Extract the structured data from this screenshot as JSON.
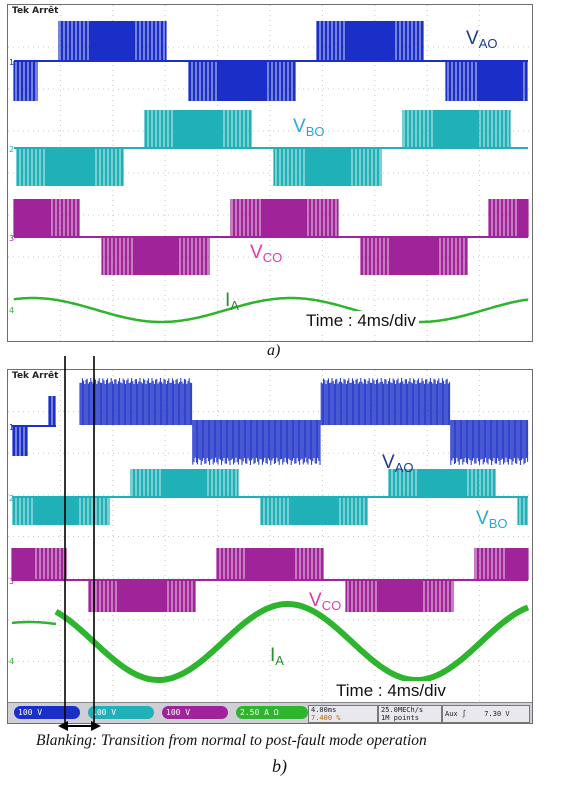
{
  "panel_a": {
    "scope_header": "Tek Arrêt",
    "labels": {
      "vao_main": "V",
      "vao_sub": "AO",
      "vbo_main": "V",
      "vbo_sub": "BO",
      "vco_main": "V",
      "vco_sub": "CO",
      "ia_main": "I",
      "ia_sub": "A"
    },
    "time_label": "Time : 4ms/div",
    "caption": "a)"
  },
  "panel_b": {
    "scope_header": "Tek Arrêt",
    "labels": {
      "vao_main": "V",
      "vao_sub": "AO",
      "vbo_main": "V",
      "vbo_sub": "BO",
      "vco_main": "V",
      "vco_sub": "CO",
      "ia_main": "I",
      "ia_sub": "A"
    },
    "time_label": "Time : 4ms/div",
    "status": {
      "ch1": "100 V",
      "ch2": "100 V",
      "ch3": "100 V",
      "ch4": "2.50 A Ω",
      "timebase": "4.00ms",
      "offset": "7.400 %",
      "rate": "25.0MECh/s",
      "points": "1M points",
      "aux": "Aux ∫",
      "level": "7.30 V"
    },
    "blanking_caption": "Blanking: Transition from normal to post-fault mode operation",
    "caption": "b)"
  },
  "colors": {
    "vao": "#1a2fc7",
    "vbo": "#1fb0b8",
    "vco": "#a0239a",
    "ia": "#2db52d",
    "label_vao": "#1f3a8a",
    "label_vbo": "#2aa7d6",
    "label_vco": "#e03aa8",
    "label_ia": "#2e8b2e"
  }
}
